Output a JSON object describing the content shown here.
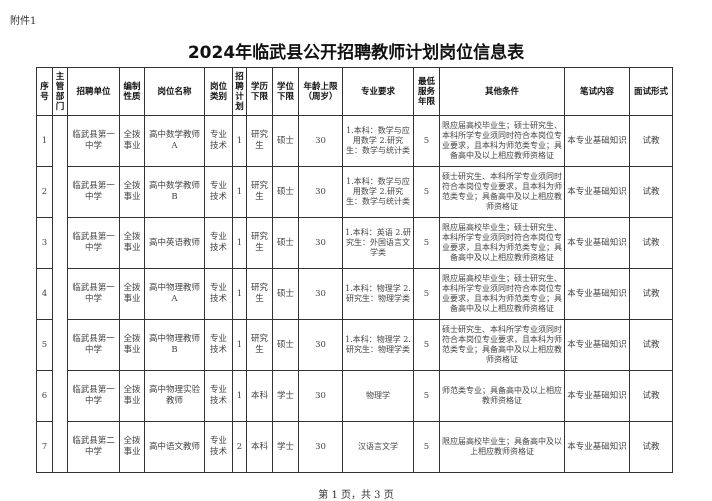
{
  "attachment_label": "附件1",
  "title": "2024年临武县公开招聘教师计划岗位信息表",
  "headers": [
    "序号",
    "主管部门",
    "招聘单位",
    "编制性质",
    "岗位名称",
    "岗位类别",
    "招聘计划",
    "学历下限",
    "学位下限",
    "年龄上限（周岁）",
    "专业要求",
    "最低服务年限",
    "其他条件",
    "笔试内容",
    "面试形式"
  ],
  "rows": [
    {
      "no": "1",
      "dept": "",
      "unit": "临武县第一中学",
      "nature": "全拨事业",
      "position": "高中数学教师A",
      "category": "专业技术",
      "plan": "1",
      "edu": "研究生",
      "degree": "硕士",
      "age": "30",
      "major": "1.本科：数学与应用数学 2.研究生：数学与统计类",
      "years": "5",
      "other": "限应届高校毕业生；硕士研究生、本科所学专业须同时符合本岗位专业要求，且本科为师范类专业；具备高中及以上相应教师资格证",
      "exam": "本专业基础知识",
      "interview": "试教"
    },
    {
      "no": "2",
      "dept": "",
      "unit": "临武县第一中学",
      "nature": "全拨事业",
      "position": "高中数学教师B",
      "category": "专业技术",
      "plan": "1",
      "edu": "研究生",
      "degree": "硕士",
      "age": "30",
      "major": "1.本科：数学与应用数学 2.研究生：数学与统计类",
      "years": "5",
      "other": "硕士研究生、本科所学专业须同时符合本岗位专业要求，且本科为师范类专业；具备高中及以上相应教师资格证",
      "exam": "本专业基础知识",
      "interview": "试教"
    },
    {
      "no": "3",
      "dept": "",
      "unit": "临武县第一中学",
      "nature": "全拨事业",
      "position": "高中英语教师",
      "category": "专业技术",
      "plan": "1",
      "edu": "研究生",
      "degree": "硕士",
      "age": "30",
      "major": "1.本科：英语 2.研究生：外国语言文学类",
      "years": "5",
      "other": "限应届高校毕业生；硕士研究生、本科所学专业须同时符合本岗位专业要求，且本科为师范类专业；具备高中及以上相应教师资格证",
      "exam": "本专业基础知识",
      "interview": "试教"
    },
    {
      "no": "4",
      "dept": "",
      "unit": "临武县第一中学",
      "nature": "全拨事业",
      "position": "高中物理教师A",
      "category": "专业技术",
      "plan": "1",
      "edu": "研究生",
      "degree": "硕士",
      "age": "30",
      "major": "1.本科：物理学 2.研究生：物理学类",
      "years": "5",
      "other": "限应届高校毕业生；硕士研究生、本科所学专业须同时符合本岗位专业要求，且本科为师范类专业；具备高中及以上相应教师资格证",
      "exam": "本专业基础知识",
      "interview": "试教"
    },
    {
      "no": "5",
      "dept": "",
      "unit": "临武县第一中学",
      "nature": "全拨事业",
      "position": "高中物理教师B",
      "category": "专业技术",
      "plan": "1",
      "edu": "研究生",
      "degree": "硕士",
      "age": "30",
      "major": "1.本科：物理学 2.研究生：物理学类",
      "years": "5",
      "other": "硕士研究生、本科所学专业须同时符合本岗位专业要求，且本科为师范类专业；具备高中及以上相应教师资格证",
      "exam": "本专业基础知识",
      "interview": "试教"
    },
    {
      "no": "6",
      "dept": "",
      "unit": "临武县第一中学",
      "nature": "全拨事业",
      "position": "高中物理实验教师",
      "category": "专业技术",
      "plan": "1",
      "edu": "本科",
      "degree": "学士",
      "age": "30",
      "major": "物理学",
      "years": "5",
      "other": "师范类专业；具备高中及以上相应教师资格证",
      "exam": "本专业基础知识",
      "interview": "试教"
    },
    {
      "no": "7",
      "dept": "",
      "unit": "临武县第二中学",
      "nature": "全拨事业",
      "position": "高中语文教师",
      "category": "专业技术",
      "plan": "2",
      "edu": "本科",
      "degree": "学士",
      "age": "30",
      "major": "汉语言文学",
      "years": "5",
      "other": "限应届高校毕业生；具备高中及以上相应教师资格证",
      "exam": "本专业基础知识",
      "interview": "试教"
    }
  ],
  "footer": "第 1 页，共 3 页"
}
